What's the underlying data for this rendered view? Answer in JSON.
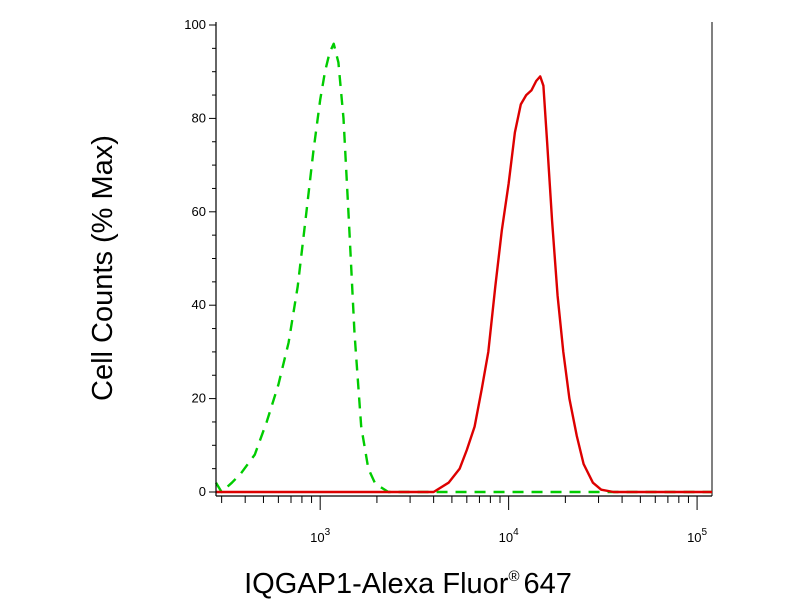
{
  "chart_data": {
    "type": "line",
    "xlabel": "IQGAP1-Alexa Fluor",
    "xlabel_superscript": "®",
    "xlabel_suffix": "647",
    "ylabel": "Cell Counts (% Max)",
    "x_scale": "log",
    "xlim": [
      280,
      120000
    ],
    "ylim": [
      0,
      100
    ],
    "y_ticks": [
      0,
      20,
      40,
      60,
      80,
      100
    ],
    "x_ticks": [
      {
        "value": 1000,
        "base": "10",
        "exp": "3"
      },
      {
        "value": 10000,
        "base": "10",
        "exp": "4"
      },
      {
        "value": 100000,
        "base": "10",
        "exp": "5"
      }
    ],
    "grid": false,
    "legend": "none",
    "series": [
      {
        "color": "#00cc00",
        "dash": "dashed",
        "x": [
          280,
          300,
          340,
          380,
          450,
          520,
          600,
          680,
          760,
          840,
          920,
          1000,
          1060,
          1120,
          1180,
          1250,
          1330,
          1420,
          1520,
          1650,
          1800,
          1950,
          2100,
          2300,
          2600,
          3000,
          4000,
          6000,
          10000,
          20000,
          40000,
          100000,
          120000
        ],
        "y": [
          2,
          0,
          2,
          4,
          8,
          15,
          23,
          32,
          44,
          59,
          73,
          84,
          90,
          94,
          96,
          92,
          80,
          58,
          34,
          14,
          5,
          2,
          1,
          0,
          0,
          0,
          0,
          0,
          0,
          0,
          0,
          0,
          0
        ]
      },
      {
        "color": "#dd0000",
        "dash": "solid",
        "x": [
          280,
          1000,
          3000,
          4000,
          4800,
          5500,
          6000,
          6600,
          7200,
          7800,
          8500,
          9200,
          10000,
          10800,
          11600,
          12400,
          13200,
          14000,
          14700,
          15300,
          16000,
          17000,
          18200,
          19500,
          21000,
          23000,
          25000,
          28000,
          31000,
          36000,
          50000,
          120000
        ],
        "y": [
          0,
          0,
          0,
          0,
          2,
          5,
          9,
          14,
          22,
          30,
          44,
          56,
          66,
          77,
          83,
          85,
          86,
          88,
          89,
          87,
          75,
          58,
          42,
          30,
          20,
          12,
          6,
          2,
          0.5,
          0,
          0,
          0
        ]
      }
    ]
  }
}
